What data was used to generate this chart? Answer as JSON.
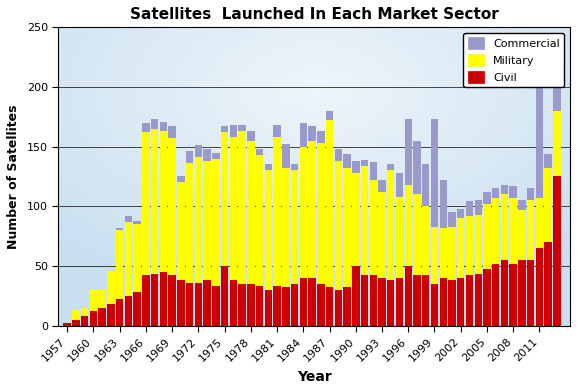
{
  "title": "Satellites  Launched In Each Market Sector",
  "xlabel": "Year",
  "ylabel": "Number of Satellites",
  "years": [
    1957,
    1958,
    1959,
    1960,
    1961,
    1962,
    1963,
    1964,
    1965,
    1966,
    1967,
    1968,
    1969,
    1970,
    1971,
    1972,
    1973,
    1974,
    1975,
    1976,
    1977,
    1978,
    1979,
    1980,
    1981,
    1982,
    1983,
    1984,
    1985,
    1986,
    1987,
    1988,
    1989,
    1990,
    1991,
    1992,
    1993,
    1994,
    1995,
    1996,
    1997,
    1998,
    1999,
    2000,
    2001,
    2002,
    2003,
    2004,
    2005,
    2006,
    2007,
    2008,
    2009,
    2010,
    2011,
    2012,
    2013
  ],
  "civil": [
    2,
    5,
    8,
    12,
    15,
    18,
    22,
    25,
    28,
    42,
    43,
    45,
    42,
    38,
    36,
    36,
    38,
    33,
    50,
    38,
    35,
    35,
    33,
    30,
    33,
    32,
    35,
    40,
    40,
    35,
    32,
    30,
    32,
    50,
    42,
    42,
    40,
    38,
    40,
    50,
    42,
    42,
    35,
    40,
    38,
    40,
    42,
    43,
    47,
    52,
    55,
    52,
    55,
    55,
    65,
    70,
    125
  ],
  "military": [
    0,
    8,
    7,
    18,
    15,
    28,
    58,
    62,
    57,
    120,
    122,
    118,
    115,
    82,
    100,
    105,
    100,
    107,
    112,
    120,
    128,
    120,
    110,
    100,
    125,
    100,
    95,
    110,
    115,
    118,
    140,
    108,
    100,
    78,
    92,
    80,
    72,
    92,
    68,
    68,
    68,
    58,
    48,
    42,
    45,
    50,
    50,
    50,
    55,
    55,
    55,
    55,
    42,
    50,
    42,
    62,
    55
  ],
  "commercial": [
    0,
    0,
    0,
    0,
    0,
    0,
    2,
    5,
    3,
    8,
    8,
    8,
    10,
    5,
    10,
    10,
    10,
    5,
    5,
    10,
    5,
    8,
    5,
    5,
    10,
    20,
    5,
    20,
    12,
    10,
    8,
    10,
    12,
    10,
    5,
    15,
    10,
    5,
    20,
    55,
    45,
    35,
    90,
    40,
    12,
    8,
    12,
    12,
    10,
    8,
    8,
    10,
    8,
    10,
    108,
    12,
    28
  ],
  "civil_color": "#cc0000",
  "military_color": "#ffff00",
  "commercial_color": "#9999cc",
  "ylim": [
    0,
    250
  ],
  "yticks": [
    0,
    50,
    100,
    150,
    200,
    250
  ],
  "bg_color": "#c8dff0",
  "bg_outer": "#ffffff",
  "tick_years": [
    1957,
    1960,
    1963,
    1966,
    1969,
    1972,
    1975,
    1978,
    1981,
    1984,
    1987,
    1990,
    1993,
    1996,
    1999,
    2002,
    2005,
    2008,
    2011
  ]
}
